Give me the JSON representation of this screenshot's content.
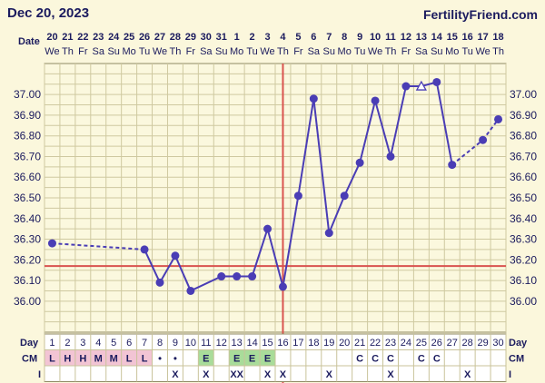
{
  "header": {
    "date": "Dec 20, 2023",
    "brand": "FertilityFriend.com"
  },
  "rows": {
    "date": "Date",
    "day": "Day",
    "cm": "CM",
    "i": "I"
  },
  "colors": {
    "line": "#4a3db5",
    "coverline": "#d9534f",
    "grid": "#cfc9a0",
    "bg": "#fbf7dc",
    "pinkCell": "#f2c4d4",
    "greenCell": "#a9dc9a"
  },
  "chart_data": {
    "type": "line",
    "ylim": [
      35.85,
      37.15
    ],
    "yticks": [
      "36.00",
      "36.10",
      "36.20",
      "36.30",
      "36.40",
      "36.50",
      "36.60",
      "36.70",
      "36.80",
      "36.90",
      "37.00"
    ],
    "coverline": 36.17,
    "ovulation_day": 16,
    "dates": [
      "20",
      "21",
      "22",
      "23",
      "24",
      "25",
      "26",
      "27",
      "28",
      "29",
      "30",
      "31",
      "1",
      "2",
      "3",
      "4",
      "5",
      "6",
      "7",
      "8",
      "9",
      "10",
      "11",
      "12",
      "13",
      "14",
      "15",
      "16",
      "17",
      "18"
    ],
    "weekdays": [
      "We",
      "Th",
      "Fr",
      "Sa",
      "Su",
      "Mo",
      "Tu",
      "We",
      "Th",
      "Fr",
      "Sa",
      "Su",
      "Mo",
      "Tu",
      "We",
      "Th",
      "Fr",
      "Sa",
      "Su",
      "Mo",
      "Tu",
      "We",
      "Th",
      "Fr",
      "Sa",
      "Su",
      "Mo",
      "Tu",
      "We",
      "Th"
    ],
    "days": [
      1,
      2,
      3,
      4,
      5,
      6,
      7,
      8,
      9,
      10,
      11,
      12,
      13,
      14,
      15,
      16,
      17,
      18,
      19,
      20,
      21,
      22,
      23,
      24,
      25,
      26,
      27,
      28,
      29,
      30
    ],
    "temps": [
      36.28,
      null,
      null,
      null,
      null,
      null,
      36.25,
      36.09,
      36.22,
      36.05,
      null,
      36.12,
      36.12,
      36.12,
      36.35,
      36.07,
      36.51,
      36.98,
      36.33,
      36.51,
      36.67,
      36.97,
      36.7,
      37.04,
      37.04,
      37.06,
      36.66,
      null,
      36.78,
      36.88
    ],
    "open_marker_days": [
      25
    ],
    "dashed_segments": [
      [
        1,
        7
      ],
      [
        27,
        29
      ],
      [
        29,
        30
      ]
    ],
    "flow": [
      "L",
      "H",
      "H",
      "M",
      "M",
      "L",
      "L",
      "•",
      "•",
      "",
      "",
      "",
      "",
      "",
      "",
      "",
      "",
      "",
      "",
      "",
      "",
      "",
      "",
      "",
      "",
      "",
      "",
      "",
      "",
      ""
    ],
    "opk": [
      "",
      "",
      "",
      "",
      "",
      "",
      "",
      "",
      "",
      "",
      "E",
      "",
      "E",
      "E",
      "E",
      "",
      "",
      "",
      "",
      "",
      "",
      "",
      "",
      "",
      "",
      "",
      "",
      "",
      "",
      ""
    ],
    "cm": [
      "",
      "",
      "",
      "",
      "",
      "",
      "",
      "",
      "",
      "",
      "",
      "",
      "",
      "",
      "",
      "",
      "",
      "",
      "",
      "",
      "C",
      "C",
      "C",
      "",
      "C",
      "C",
      "",
      "",
      "",
      ""
    ],
    "intercourse": [
      "",
      "",
      "",
      "",
      "",
      "",
      "",
      "",
      "X",
      "",
      "X",
      "",
      "XX",
      "",
      "X",
      "X",
      "",
      "",
      "X",
      "",
      "",
      "",
      "X",
      "",
      "",
      "",
      "",
      "X",
      "",
      ""
    ]
  }
}
